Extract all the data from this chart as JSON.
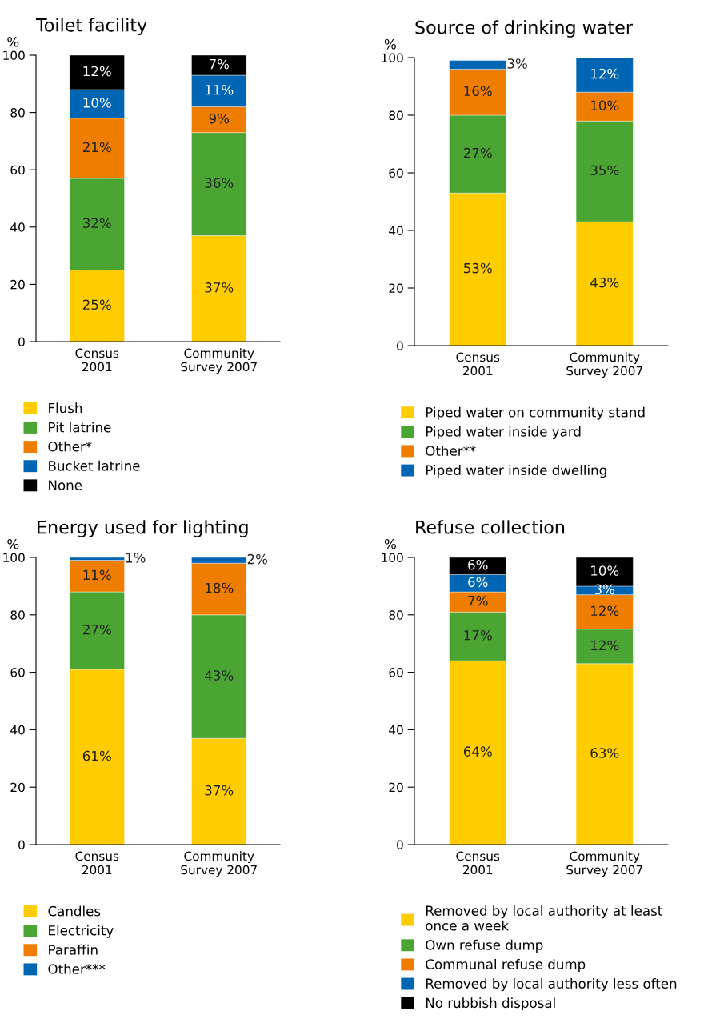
{
  "chart_data": [
    {
      "type": "bar",
      "title": "Toilet facility",
      "ylabel": "%",
      "categories": [
        "Census\n2001",
        "Community\nSurvey 2007"
      ],
      "stacked": true,
      "ylim": [
        0,
        100
      ],
      "yticks": [
        0,
        20,
        40,
        60,
        80,
        100
      ],
      "legend": "bottom",
      "grid": false,
      "series": [
        {
          "name": "Flush",
          "color": "#ffcc00",
          "values": [
            25,
            37
          ],
          "value_labels": [
            "25%",
            "37%"
          ]
        },
        {
          "name": "Pit latrine",
          "color": "#4aa532",
          "values": [
            32,
            36
          ],
          "value_labels": [
            "32%",
            "36%"
          ]
        },
        {
          "name": "Other*",
          "color": "#ee7d00",
          "values": [
            21,
            9
          ],
          "value_labels": [
            "21%",
            "9%"
          ]
        },
        {
          "name": "Bucket latrine",
          "color": "#0066b3",
          "values": [
            10,
            11
          ],
          "value_labels": [
            "10%",
            "11%"
          ]
        },
        {
          "name": "None",
          "color": "#000000",
          "values": [
            12,
            7
          ],
          "value_labels": [
            "12%",
            "7%"
          ]
        }
      ]
    },
    {
      "type": "bar",
      "title": "Source of drinking water",
      "ylabel": "%",
      "categories": [
        "Census\n2001",
        "Community\nSurvey 2007"
      ],
      "stacked": true,
      "ylim": [
        0,
        100
      ],
      "yticks": [
        0,
        20,
        40,
        60,
        80,
        100
      ],
      "legend": "bottom",
      "grid": false,
      "series": [
        {
          "name": "Piped water on community stand",
          "color": "#ffcc00",
          "values": [
            53,
            43
          ],
          "value_labels": [
            "53%",
            "43%"
          ]
        },
        {
          "name": "Piped water inside yard",
          "color": "#4aa532",
          "values": [
            27,
            35
          ],
          "value_labels": [
            "27%",
            "35%"
          ]
        },
        {
          "name": "Other**",
          "color": "#ee7d00",
          "values": [
            16,
            10
          ],
          "value_labels": [
            "16%",
            "10%"
          ]
        },
        {
          "name": "Piped water inside dwelling",
          "color": "#0066b3",
          "values": [
            3,
            12
          ],
          "value_labels": [
            "3%",
            "12%"
          ]
        }
      ]
    },
    {
      "type": "bar",
      "title": "Energy used for lighting",
      "ylabel": "%",
      "categories": [
        "Census\n2001",
        "Community\nSurvey 2007"
      ],
      "stacked": true,
      "ylim": [
        0,
        100
      ],
      "yticks": [
        0,
        20,
        40,
        60,
        80,
        100
      ],
      "legend": "bottom",
      "grid": false,
      "series": [
        {
          "name": "Candles",
          "color": "#ffcc00",
          "values": [
            61,
            37
          ],
          "value_labels": [
            "61%",
            "37%"
          ]
        },
        {
          "name": "Electricity",
          "color": "#4aa532",
          "values": [
            27,
            43
          ],
          "value_labels": [
            "27%",
            "43%"
          ]
        },
        {
          "name": "Paraffin",
          "color": "#ee7d00",
          "values": [
            11,
            18
          ],
          "value_labels": [
            "11%",
            "18%"
          ]
        },
        {
          "name": "Other***",
          "color": "#0066b3",
          "values": [
            1,
            2
          ],
          "value_labels": [
            "1%",
            "2%"
          ]
        }
      ]
    },
    {
      "type": "bar",
      "title": "Refuse collection",
      "ylabel": "%",
      "categories": [
        "Census\n2001",
        "Community\nSurvey 2007"
      ],
      "stacked": true,
      "ylim": [
        0,
        100
      ],
      "yticks": [
        0,
        20,
        40,
        60,
        80,
        100
      ],
      "legend": "bottom",
      "grid": false,
      "series": [
        {
          "name": "Removed by local authority at least\nonce a week",
          "color": "#ffcc00",
          "values": [
            64,
            63
          ],
          "value_labels": [
            "64%",
            "63%"
          ]
        },
        {
          "name": "Own refuse dump",
          "color": "#4aa532",
          "values": [
            17,
            12
          ],
          "value_labels": [
            "17%",
            "12%"
          ]
        },
        {
          "name": "Communal refuse dump",
          "color": "#ee7d00",
          "values": [
            7,
            12
          ],
          "value_labels": [
            "7%",
            "12%"
          ]
        },
        {
          "name": "Removed by local authority less often",
          "color": "#0066b3",
          "values": [
            6,
            3
          ],
          "value_labels": [
            "6%",
            "3%"
          ]
        },
        {
          "name": "No rubbish disposal",
          "color": "#000000",
          "values": [
            6,
            10
          ],
          "value_labels": [
            "6%",
            "10%"
          ]
        }
      ]
    }
  ]
}
